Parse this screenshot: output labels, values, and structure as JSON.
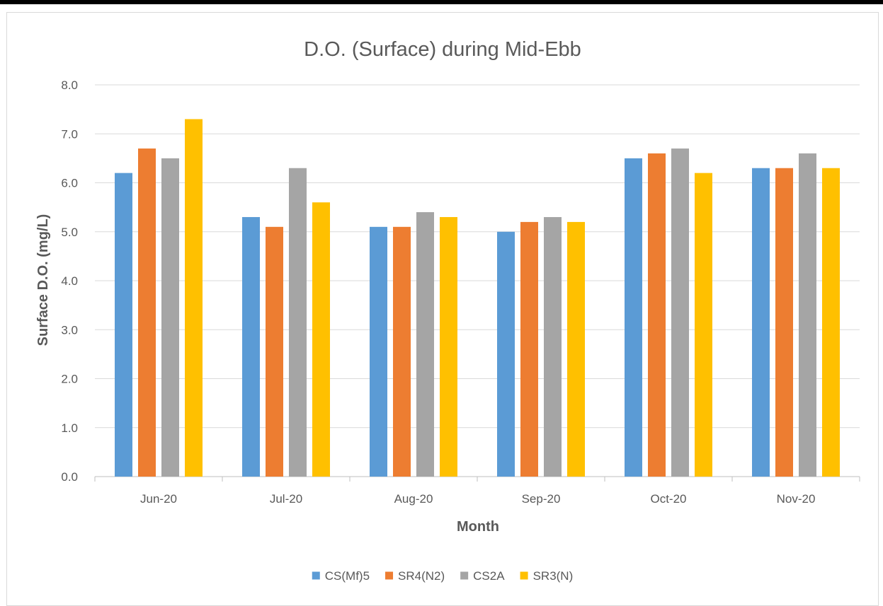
{
  "chart_data": {
    "type": "bar",
    "title": "D.O. (Surface) during Mid-Ebb",
    "xlabel": "Month",
    "ylabel": "Surface D.O. (mg/L)",
    "categories": [
      "Jun-20",
      "Jul-20",
      "Aug-20",
      "Sep-20",
      "Oct-20",
      "Nov-20"
    ],
    "series": [
      {
        "name": "CS(Mf)5",
        "color": "#5b9bd5",
        "values": [
          6.2,
          5.3,
          5.1,
          5.0,
          6.5,
          6.3
        ]
      },
      {
        "name": "SR4(N2)",
        "color": "#ed7d31",
        "values": [
          6.7,
          5.1,
          5.1,
          5.2,
          6.6,
          6.3
        ]
      },
      {
        "name": "CS2A",
        "color": "#a5a5a5",
        "values": [
          6.5,
          6.3,
          5.4,
          5.3,
          6.7,
          6.6
        ]
      },
      {
        "name": "SR3(N)",
        "color": "#ffc000",
        "values": [
          7.3,
          5.6,
          5.3,
          5.2,
          6.2,
          6.3
        ]
      }
    ],
    "ylim": [
      0,
      8
    ],
    "yticks": [
      "0.0",
      "1.0",
      "2.0",
      "3.0",
      "4.0",
      "5.0",
      "6.0",
      "7.0",
      "8.0"
    ],
    "grid": true,
    "legend_position": "bottom"
  }
}
